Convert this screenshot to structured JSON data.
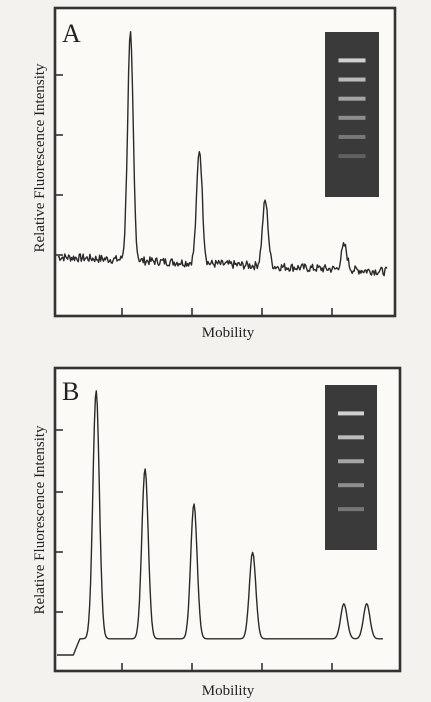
{
  "chart_data": [
    {
      "type": "line",
      "panel_label": "A",
      "xlabel": "Mobility",
      "ylabel": "Relative Fluorescence Intensity",
      "grid": false,
      "peaks": [
        {
          "x": 0.22,
          "height": 0.93
        },
        {
          "x": 0.43,
          "height": 0.47
        },
        {
          "x": 0.63,
          "height": 0.27
        },
        {
          "x": 0.87,
          "height": 0.1
        }
      ],
      "gel_bands": 6
    },
    {
      "type": "line",
      "panel_label": "B",
      "xlabel": "Mobility",
      "ylabel": "Relative Fluorescence Intensity",
      "grid": false,
      "peaks": [
        {
          "x": 0.12,
          "height": 0.92
        },
        {
          "x": 0.27,
          "height": 0.63
        },
        {
          "x": 0.42,
          "height": 0.5
        },
        {
          "x": 0.6,
          "height": 0.32
        },
        {
          "x": 0.88,
          "height": 0.13
        },
        {
          "x": 0.95,
          "height": 0.13
        }
      ],
      "gel_bands": 5
    }
  ]
}
